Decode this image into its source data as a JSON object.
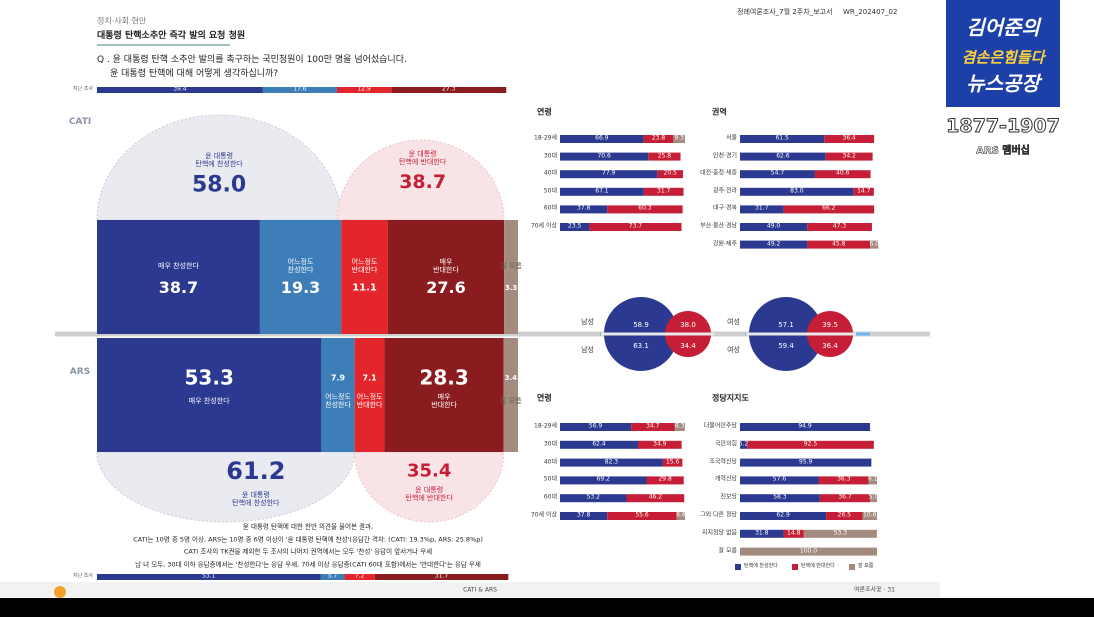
{
  "header": {
    "section": "정치·사회 현안",
    "title": "대통령 탄핵소추안 즉각 발의 요청 청원",
    "report": "정례여론조사_7월 2주차_보고서",
    "code": "WR_202407_02"
  },
  "question": [
    "Q . 윤 대통령 탄핵 소추안 발의를 촉구하는 국민청원이 100만 명을 넘어섰습니다.",
    "윤 대통령 탄핵에 대해 어떻게 생각하십니까?"
  ],
  "main": {
    "colors": [
      "#2b3990",
      "#3d7db8",
      "#e3262b",
      "#8a1c1f",
      "#a38b80"
    ],
    "methods": [
      {
        "method": "CATI",
        "strip_label": "지난 조사",
        "previous": [
          39.4,
          17.6,
          12.9,
          27.3
        ],
        "segments": [
          {
            "name": "매우 찬성한다",
            "value": 38.7
          },
          {
            "name": "어느정도\n찬성한다",
            "value": 19.3
          },
          {
            "name": "어느정도\n반대한다",
            "value": 11.1
          },
          {
            "name": "매우\n반대한다",
            "value": 27.6
          },
          {
            "name": "잘 모름",
            "value": 3.3
          }
        ],
        "support": {
          "name": "윤 대통령\n탄핵에 찬성한다",
          "value": 58.0,
          "label": "58.0"
        },
        "oppose": {
          "name": "윤 대통령\n탄핵에 반대한다",
          "value": 38.7
        }
      },
      {
        "method": "ARS",
        "strip_label": "지난 조사",
        "previous": [
          53.1,
          5.7,
          7.2,
          31.7
        ],
        "segments": [
          {
            "name": "매우 찬성한다",
            "value": 53.3
          },
          {
            "name": "어느정도\n찬성한다",
            "value": 7.9
          },
          {
            "name": "어느정도\n반대한다",
            "value": 7.1
          },
          {
            "name": "매우\n반대한다",
            "value": 28.3
          },
          {
            "name": "잘 모름",
            "value": 3.4
          }
        ],
        "support": {
          "name": "윤 대통령\n탄핵에 찬성한다",
          "value": 61.2
        },
        "oppose": {
          "name": "윤 대통령\n탄핵에 반대한다",
          "value": 35.4
        }
      }
    ]
  },
  "notes": [
    "윤 대통령 탄핵에 대한 찬반 의견을 물어본 결과,",
    "CATI는 10명 중 5명 이상, ARS는 10명 중 6명 이상이 '윤 대통령 탄핵에 찬성'(응답간 격차: (CATI: 19.3%p, ARS: 25.8%p)",
    "CATI 조사의 TK권을 제외한 두 조사의 나머지 권역에서는 모두 '찬성' 응답이 앞서거나 우세",
    "남·녀 모두, 30대 이하 응답층에서는 '찬성한다'는 응답 우세, 70세 이상 응답층(CATI 60대 포함)에서는 '반대한다'는 응답 우세"
  ],
  "bar_colors": [
    "#2b3990",
    "#c61e36",
    "#a38b80"
  ],
  "panels": [
    {
      "title": "연령",
      "rows": [
        {
          "name": "18-29세",
          "values": [
            66.9,
            23.8,
            9.3
          ]
        },
        {
          "name": "30대",
          "values": [
            70.6,
            25.8
          ]
        },
        {
          "name": "40대",
          "values": [
            77.9,
            20.5
          ]
        },
        {
          "name": "50대",
          "values": [
            67.1,
            31.7
          ]
        },
        {
          "name": "60대",
          "values": [
            37.8,
            60.3
          ]
        },
        {
          "name": "70세 이상",
          "values": [
            23.5,
            73.7
          ]
        }
      ]
    },
    {
      "title": "권역",
      "rows": [
        {
          "name": "서울",
          "values": [
            61.5,
            36.4
          ]
        },
        {
          "name": "인천·경기",
          "values": [
            62.6,
            34.2
          ]
        },
        {
          "name": "대전·충청·세종",
          "values": [
            54.7,
            40.6
          ]
        },
        {
          "name": "광주·전라",
          "values": [
            83.0,
            14.7
          ],
          "labels": {
            "0": "83.0"
          }
        },
        {
          "name": "대구·경북",
          "values": [
            31.7,
            66.2
          ]
        },
        {
          "name": "부산·울산·경남",
          "values": [
            49.0,
            47.3
          ],
          "labels": {
            "0": "49.0"
          }
        },
        {
          "name": "강원·제주",
          "values": [
            49.2,
            45.8,
            6.0
          ],
          "labels": {
            "2": "6.0"
          }
        }
      ]
    },
    {
      "title": "연령",
      "rows": [
        {
          "name": "18-29세",
          "values": [
            56.9,
            34.7,
            8.3
          ]
        },
        {
          "name": "30대",
          "values": [
            62.4,
            34.9
          ]
        },
        {
          "name": "40대",
          "values": [
            82.3,
            15.6
          ]
        },
        {
          "name": "50대",
          "values": [
            69.2,
            29.8
          ]
        },
        {
          "name": "60대",
          "values": [
            53.2,
            46.2
          ]
        },
        {
          "name": "70세 이상",
          "values": [
            37.8,
            55.6,
            6.6
          ]
        }
      ]
    },
    {
      "title": "정당지지도",
      "rows": [
        {
          "name": "더불어민주당",
          "values": [
            94.9
          ]
        },
        {
          "name": "국민의힘",
          "values": [
            5.2,
            92.5
          ]
        },
        {
          "name": "조국혁신당",
          "values": [
            95.9
          ]
        },
        {
          "name": "개혁신당",
          "values": [
            57.6,
            36.3,
            6.1
          ]
        },
        {
          "name": "진보당",
          "values": [
            58.3,
            36.7,
            5.0
          ],
          "labels": {
            "2": "5.0"
          }
        },
        {
          "name": "그외 다른 정당",
          "values": [
            62.9,
            26.5,
            10.6
          ]
        },
        {
          "name": "지지정당 없음",
          "values": [
            31.8,
            14.8,
            53.3
          ]
        },
        {
          "name": "잘 모름",
          "values": [
            null,
            null,
            100.0
          ],
          "labels": {
            "2": "100.0"
          }
        }
      ]
    }
  ],
  "legend": [
    "탄핵에 찬성한다",
    "탄핵에 반대한다",
    "잘 모름"
  ],
  "gender": [
    {
      "name": "남성",
      "cati": [
        58.9,
        38.0
      ],
      "cati_labels": {
        "1": "38.0"
      },
      "ars": [
        63.1,
        34.4
      ]
    },
    {
      "name": "여성",
      "cati": [
        57.1,
        39.5
      ],
      "ars": [
        59.4,
        36.4
      ]
    }
  ],
  "footer": {
    "center": "CATI & ARS",
    "page": "여론조사꽃 · 31"
  },
  "logo": {
    "line1": "김어준의",
    "line2": "겸손은힘들다",
    "line3": "뉴스공장",
    "phone": "1877-1907",
    "member": "ARS 멤버십"
  }
}
